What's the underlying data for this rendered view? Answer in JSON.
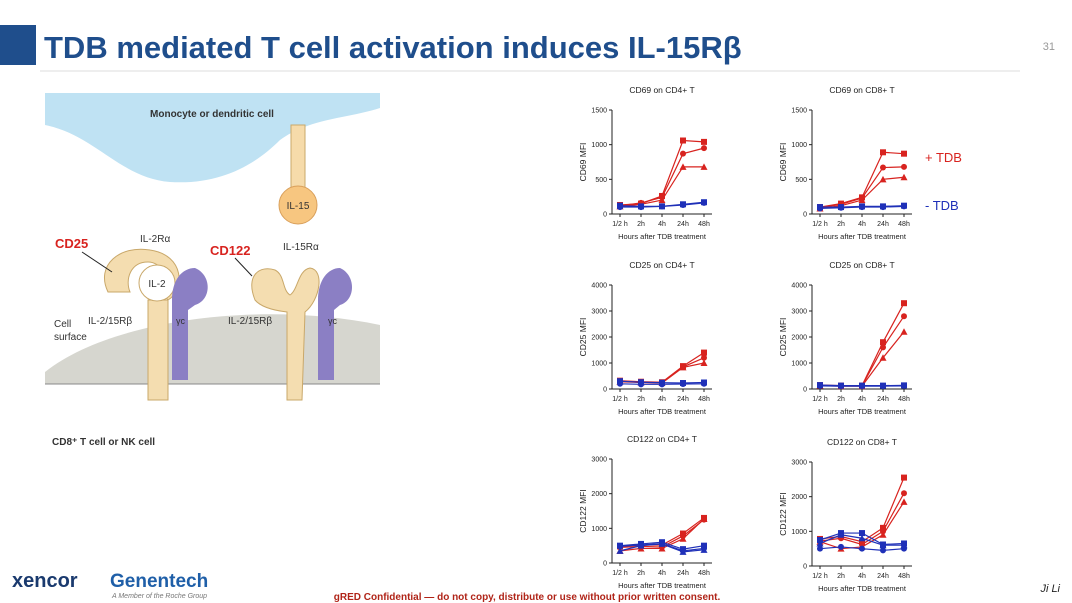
{
  "slide": {
    "title": "TDB mediated T cell activation induces IL-15Rβ",
    "page_number": 31
  },
  "diagram": {
    "top_cell": "Monocyte or dendritic cell",
    "il15": "IL-15",
    "cd25": "CD25",
    "cd122": "CD122",
    "il2ra": "IL-2Rα",
    "il15ra": "IL-15Rα",
    "il2": "IL-2",
    "beta_labels": [
      "IL-2/15Rβ",
      "IL-2/15Rβ"
    ],
    "gamma_labels": [
      "γc",
      "γc"
    ],
    "cell_surface": [
      "Cell",
      "surface"
    ],
    "bottom_cell": "CD8⁺ T cell or NK cell"
  },
  "legend": [
    {
      "label": "+ TDB",
      "color": "#d8231f"
    },
    {
      "label": "- TDB",
      "color": "#1f30b8"
    }
  ],
  "chart_data": [
    {
      "type": "line",
      "title": "CD69 on CD4+ T",
      "y_label": "CD69 MFI",
      "x_label": "Hours after TDB treatment",
      "categories": [
        "1/2 h",
        "2h",
        "4h",
        "24h",
        "48h"
      ],
      "ylim": [
        0,
        1500
      ],
      "yticks": [
        0,
        500,
        1000,
        1500
      ],
      "series": [
        {
          "color": "#d8231f",
          "values": [
            130,
            150,
            260,
            1060,
            1040
          ]
        },
        {
          "color": "#d8231f",
          "values": [
            120,
            160,
            240,
            870,
            950
          ]
        },
        {
          "color": "#d8231f",
          "values": [
            110,
            140,
            200,
            680,
            680
          ]
        },
        {
          "color": "#1f30b8",
          "values": [
            120,
            110,
            110,
            140,
            170
          ]
        },
        {
          "color": "#1f30b8",
          "values": [
            100,
            100,
            110,
            130,
            160
          ]
        }
      ]
    },
    {
      "type": "line",
      "title": "CD69 on CD8+ T",
      "y_label": "CD69 MFI",
      "x_label": "Hours after TDB treatment",
      "categories": [
        "1/2 h",
        "2h",
        "4h",
        "24h",
        "48h"
      ],
      "ylim": [
        0,
        1500
      ],
      "yticks": [
        0,
        500,
        1000,
        1500
      ],
      "series": [
        {
          "color": "#d8231f",
          "values": [
            100,
            150,
            240,
            890,
            870
          ]
        },
        {
          "color": "#d8231f",
          "values": [
            90,
            140,
            230,
            670,
            680
          ]
        },
        {
          "color": "#d8231f",
          "values": [
            80,
            120,
            200,
            500,
            530
          ]
        },
        {
          "color": "#1f30b8",
          "values": [
            100,
            100,
            110,
            110,
            120
          ]
        },
        {
          "color": "#1f30b8",
          "values": [
            80,
            90,
            100,
            100,
            110
          ]
        }
      ]
    },
    {
      "type": "line",
      "title": "CD25 on CD4+ T",
      "y_label": "CD25 MFI",
      "x_label": "Hours after TDB treatment",
      "categories": [
        "1/2 h",
        "2h",
        "4h",
        "24h",
        "48h"
      ],
      "ylim": [
        0,
        4000
      ],
      "yticks": [
        0,
        1000,
        2000,
        3000,
        4000
      ],
      "series": [
        {
          "color": "#d8231f",
          "values": [
            320,
            280,
            260,
            880,
            1400
          ]
        },
        {
          "color": "#d8231f",
          "values": [
            300,
            260,
            250,
            850,
            1200
          ]
        },
        {
          "color": "#d8231f",
          "values": [
            280,
            250,
            230,
            830,
            1000
          ]
        },
        {
          "color": "#1f30b8",
          "values": [
            300,
            260,
            240,
            230,
            250
          ]
        },
        {
          "color": "#1f30b8",
          "values": [
            200,
            180,
            180,
            190,
            200
          ]
        }
      ]
    },
    {
      "type": "line",
      "title": "CD25 on CD8+ T",
      "y_label": "CD25 MFI",
      "x_label": "Hours after TDB treatment",
      "categories": [
        "1/2 h",
        "2h",
        "4h",
        "24h",
        "48h"
      ],
      "ylim": [
        0,
        4000
      ],
      "yticks": [
        0,
        1000,
        2000,
        3000,
        4000
      ],
      "series": [
        {
          "color": "#d8231f",
          "values": [
            150,
            130,
            130,
            1800,
            3300
          ]
        },
        {
          "color": "#d8231f",
          "values": [
            140,
            120,
            120,
            1600,
            2800
          ]
        },
        {
          "color": "#d8231f",
          "values": [
            130,
            110,
            110,
            1200,
            2200
          ]
        },
        {
          "color": "#1f30b8",
          "values": [
            150,
            130,
            130,
            130,
            140
          ]
        },
        {
          "color": "#1f30b8",
          "values": [
            120,
            110,
            110,
            110,
            120
          ]
        }
      ]
    },
    {
      "type": "line",
      "title": "CD122 on CD4+ T",
      "y_label": "CD122 MFI",
      "x_label": "Hours after TDB treatment",
      "categories": [
        "1/2 h",
        "2h",
        "4h",
        "24h",
        "48h"
      ],
      "ylim": [
        0,
        3000
      ],
      "yticks": [
        0,
        1000,
        2000,
        3000
      ],
      "series": [
        {
          "color": "#d8231f",
          "values": [
            480,
            520,
            520,
            850,
            1300
          ]
        },
        {
          "color": "#d8231f",
          "values": [
            450,
            480,
            460,
            780,
            1250
          ]
        },
        {
          "color": "#d8231f",
          "values": [
            350,
            420,
            420,
            700,
            1270
          ]
        },
        {
          "color": "#1f30b8",
          "values": [
            500,
            550,
            600,
            400,
            500
          ]
        },
        {
          "color": "#1f30b8",
          "values": [
            480,
            520,
            560,
            350,
            420
          ]
        },
        {
          "color": "#1f30b8",
          "values": [
            350,
            500,
            550,
            320,
            380
          ]
        }
      ]
    },
    {
      "type": "line",
      "title": "CD122 on CD8+ T",
      "y_label": "CD122 MFI",
      "x_label": "Hours after TDB treatment",
      "categories": [
        "1/2 h",
        "2h",
        "4h",
        "24h",
        "48h"
      ],
      "ylim": [
        0,
        3000
      ],
      "yticks": [
        0,
        1000,
        2000,
        3000
      ],
      "series": [
        {
          "color": "#d8231f",
          "values": [
            780,
            850,
            700,
            1100,
            2550
          ]
        },
        {
          "color": "#d8231f",
          "values": [
            720,
            800,
            620,
            1000,
            2100
          ]
        },
        {
          "color": "#d8231f",
          "values": [
            700,
            500,
            550,
            900,
            1850
          ]
        },
        {
          "color": "#1f30b8",
          "values": [
            750,
            950,
            950,
            620,
            650
          ]
        },
        {
          "color": "#1f30b8",
          "values": [
            500,
            550,
            500,
            450,
            500
          ]
        },
        {
          "color": "#1f30b8",
          "values": [
            650,
            900,
            800,
            600,
            600
          ]
        }
      ]
    }
  ],
  "footer": {
    "logo_left": "xencor",
    "logo_right": "Genentech",
    "logo_sub": "A Member of the Roche Group",
    "confidential": "gRED Confidential — do not copy, distribute or use without prior written consent.",
    "author": "Ji Li"
  }
}
